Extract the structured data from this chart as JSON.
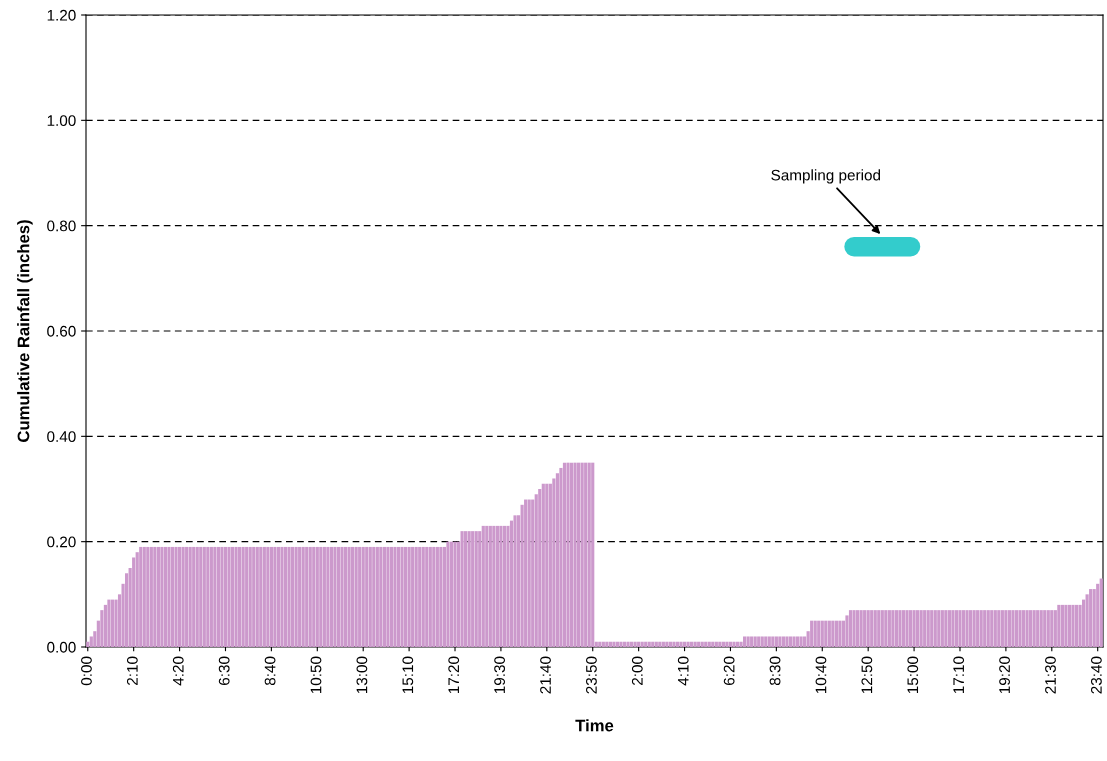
{
  "chart_data": {
    "type": "bar",
    "xlabel": "Time",
    "ylabel": "Cumulative Rainfall (inches)",
    "categories": [
      "0:00",
      null,
      null,
      null,
      null,
      null,
      null,
      null,
      null,
      null,
      null,
      null,
      null,
      "2:10",
      null,
      null,
      null,
      null,
      null,
      null,
      null,
      null,
      null,
      null,
      null,
      null,
      "4:20",
      null,
      null,
      null,
      null,
      null,
      null,
      null,
      null,
      null,
      null,
      null,
      null,
      "6:30",
      null,
      null,
      null,
      null,
      null,
      null,
      null,
      null,
      null,
      null,
      null,
      null,
      "8:40",
      null,
      null,
      null,
      null,
      null,
      null,
      null,
      null,
      null,
      null,
      null,
      null,
      "10:50",
      null,
      null,
      null,
      null,
      null,
      null,
      null,
      null,
      null,
      null,
      null,
      null,
      "13:00",
      null,
      null,
      null,
      null,
      null,
      null,
      null,
      null,
      null,
      null,
      null,
      null,
      "15:10",
      null,
      null,
      null,
      null,
      null,
      null,
      null,
      null,
      null,
      null,
      null,
      null,
      "17:20",
      null,
      null,
      null,
      null,
      null,
      null,
      null,
      null,
      null,
      null,
      null,
      null,
      "19:30",
      null,
      null,
      null,
      null,
      null,
      null,
      null,
      null,
      null,
      null,
      null,
      null,
      "21:40",
      null,
      null,
      null,
      null,
      null,
      null,
      null,
      null,
      null,
      null,
      null,
      null,
      "23:50",
      null,
      null,
      null,
      null,
      null,
      null,
      null,
      null,
      null,
      null,
      null,
      null,
      "2:00",
      null,
      null,
      null,
      null,
      null,
      null,
      null,
      null,
      null,
      null,
      null,
      null,
      "4:10",
      null,
      null,
      null,
      null,
      null,
      null,
      null,
      null,
      null,
      null,
      null,
      null,
      "6:20",
      null,
      null,
      null,
      null,
      null,
      null,
      null,
      null,
      null,
      null,
      null,
      null,
      "8:30",
      null,
      null,
      null,
      null,
      null,
      null,
      null,
      null,
      null,
      null,
      null,
      null,
      "10:40",
      null,
      null,
      null,
      null,
      null,
      null,
      null,
      null,
      null,
      null,
      null,
      null,
      "12:50",
      null,
      null,
      null,
      null,
      null,
      null,
      null,
      null,
      null,
      null,
      null,
      null,
      "15:00",
      null,
      null,
      null,
      null,
      null,
      null,
      null,
      null,
      null,
      null,
      null,
      null,
      "17:10",
      null,
      null,
      null,
      null,
      null,
      null,
      null,
      null,
      null,
      null,
      null,
      null,
      "19:20",
      null,
      null,
      null,
      null,
      null,
      null,
      null,
      null,
      null,
      null,
      null,
      null,
      "21:30",
      null,
      null,
      null,
      null,
      null,
      null,
      null,
      null,
      null,
      null,
      null,
      null,
      "23:40",
      null
    ],
    "series": [
      {
        "color": "#cc99cc",
        "values": [
          0.01,
          0.02,
          0.03,
          0.05,
          0.07,
          0.08,
          0.09,
          0.09,
          0.09,
          0.1,
          0.12,
          0.14,
          0.15,
          0.17,
          0.18,
          0.19,
          0.19,
          0.19,
          0.19,
          0.19,
          0.19,
          0.19,
          0.19,
          0.19,
          0.19,
          0.19,
          0.19,
          0.19,
          0.19,
          0.19,
          0.19,
          0.19,
          0.19,
          0.19,
          0.19,
          0.19,
          0.19,
          0.19,
          0.19,
          0.19,
          0.19,
          0.19,
          0.19,
          0.19,
          0.19,
          0.19,
          0.19,
          0.19,
          0.19,
          0.19,
          0.19,
          0.19,
          0.19,
          0.19,
          0.19,
          0.19,
          0.19,
          0.19,
          0.19,
          0.19,
          0.19,
          0.19,
          0.19,
          0.19,
          0.19,
          0.19,
          0.19,
          0.19,
          0.19,
          0.19,
          0.19,
          0.19,
          0.19,
          0.19,
          0.19,
          0.19,
          0.19,
          0.19,
          0.19,
          0.19,
          0.19,
          0.19,
          0.19,
          0.19,
          0.19,
          0.19,
          0.19,
          0.19,
          0.19,
          0.19,
          0.19,
          0.19,
          0.19,
          0.19,
          0.19,
          0.19,
          0.19,
          0.19,
          0.19,
          0.19,
          0.19,
          0.19,
          0.2,
          0.2,
          0.2,
          0.2,
          0.22,
          0.22,
          0.22,
          0.22,
          0.22,
          0.22,
          0.23,
          0.23,
          0.23,
          0.23,
          0.23,
          0.23,
          0.23,
          0.23,
          0.24,
          0.25,
          0.25,
          0.27,
          0.28,
          0.28,
          0.28,
          0.29,
          0.3,
          0.31,
          0.31,
          0.31,
          0.32,
          0.33,
          0.34,
          0.35,
          0.35,
          0.35,
          0.35,
          0.35,
          0.35,
          0.35,
          0.35,
          0.35,
          0.01,
          0.01,
          0.01,
          0.01,
          0.01,
          0.01,
          0.01,
          0.01,
          0.01,
          0.01,
          0.01,
          0.01,
          0.01,
          0.01,
          0.01,
          0.01,
          0.01,
          0.01,
          0.01,
          0.01,
          0.01,
          0.01,
          0.01,
          0.01,
          0.01,
          0.01,
          0.01,
          0.01,
          0.01,
          0.01,
          0.01,
          0.01,
          0.01,
          0.01,
          0.01,
          0.01,
          0.01,
          0.01,
          0.01,
          0.01,
          0.01,
          0.01,
          0.02,
          0.02,
          0.02,
          0.02,
          0.02,
          0.02,
          0.02,
          0.02,
          0.02,
          0.02,
          0.02,
          0.02,
          0.02,
          0.02,
          0.02,
          0.02,
          0.02,
          0.02,
          0.03,
          0.05,
          0.05,
          0.05,
          0.05,
          0.05,
          0.05,
          0.05,
          0.05,
          0.05,
          0.05,
          0.06,
          0.07,
          0.07,
          0.07,
          0.07,
          0.07,
          0.07,
          0.07,
          0.07,
          0.07,
          0.07,
          0.07,
          0.07,
          0.07,
          0.07,
          0.07,
          0.07,
          0.07,
          0.07,
          0.07,
          0.07,
          0.07,
          0.07,
          0.07,
          0.07,
          0.07,
          0.07,
          0.07,
          0.07,
          0.07,
          0.07,
          0.07,
          0.07,
          0.07,
          0.07,
          0.07,
          0.07,
          0.07,
          0.07,
          0.07,
          0.07,
          0.07,
          0.07,
          0.07,
          0.07,
          0.07,
          0.07,
          0.07,
          0.07,
          0.07,
          0.07,
          0.07,
          0.07,
          0.07,
          0.07,
          0.07,
          0.07,
          0.07,
          0.07,
          0.07,
          0.08,
          0.08,
          0.08,
          0.08,
          0.08,
          0.08,
          0.08,
          0.09,
          0.1,
          0.11,
          0.11,
          0.12,
          0.13
        ]
      },
      {
        "type": "line",
        "color": "#33cccc",
        "values": [
          null,
          null,
          null,
          null,
          null,
          null,
          null,
          null,
          null,
          null,
          null,
          null,
          null,
          null,
          null,
          null,
          null,
          null,
          null,
          null,
          null,
          null,
          null,
          null,
          null,
          null,
          null,
          null,
          null,
          null,
          null,
          null,
          null,
          null,
          null,
          null,
          null,
          null,
          null,
          null,
          null,
          null,
          null,
          null,
          null,
          null,
          null,
          null,
          null,
          null,
          null,
          null,
          null,
          null,
          null,
          null,
          null,
          null,
          null,
          null,
          null,
          null,
          null,
          null,
          null,
          null,
          null,
          null,
          null,
          null,
          null,
          null,
          null,
          null,
          null,
          null,
          null,
          null,
          null,
          null,
          null,
          null,
          null,
          null,
          null,
          null,
          null,
          null,
          null,
          null,
          null,
          null,
          null,
          null,
          null,
          null,
          null,
          null,
          null,
          null,
          null,
          null,
          null,
          null,
          null,
          null,
          null,
          null,
          null,
          null,
          null,
          null,
          null,
          null,
          null,
          null,
          null,
          null,
          null,
          null,
          null,
          null,
          null,
          null,
          null,
          null,
          null,
          null,
          null,
          null,
          null,
          null,
          null,
          null,
          null,
          null,
          null,
          null,
          null,
          null,
          null,
          null,
          null,
          null,
          null,
          null,
          null,
          null,
          null,
          null,
          null,
          null,
          null,
          null,
          null,
          null,
          null,
          null,
          null,
          null,
          null,
          null,
          null,
          null,
          null,
          null,
          null,
          null,
          null,
          null,
          null,
          null,
          null,
          null,
          null,
          null,
          null,
          null,
          null,
          null,
          null,
          null,
          null,
          null,
          null,
          null,
          null,
          null,
          null,
          null,
          null,
          null,
          null,
          null,
          null,
          null,
          null,
          null,
          null,
          null,
          null,
          null,
          null,
          null,
          null,
          null,
          null,
          null,
          null,
          null,
          null,
          null,
          null,
          null,
          null,
          null,
          null,
          0.76,
          0.76,
          0.76,
          0.76,
          0.76,
          0.76,
          0.76,
          0.76,
          0.76,
          0.76,
          0.76,
          0.76,
          0.76,
          0.76,
          0.76,
          0.76,
          0.76,
          null,
          null,
          null,
          null,
          null,
          null,
          null,
          null,
          null,
          null,
          null,
          null,
          null,
          null,
          null,
          null,
          null,
          null,
          null,
          null,
          null,
          null,
          null,
          null,
          null,
          null,
          null,
          null,
          null,
          null,
          null,
          null,
          null,
          null,
          null,
          null,
          null,
          null,
          null,
          null,
          null,
          null,
          null,
          null,
          null,
          null,
          null,
          null,
          null,
          null,
          null,
          null,
          null,
          null
        ]
      }
    ],
    "annotations": [
      "Sampling period"
    ],
    "ylim": [
      0,
      1.2
    ],
    "yticks": [
      {
        "value": 0,
        "label": "0.00"
      },
      {
        "value": 0.2,
        "label": "0.20"
      },
      {
        "value": 0.4,
        "label": "0.40"
      },
      {
        "value": 0.6,
        "label": "0.60"
      },
      {
        "value": 0.8,
        "label": "0.80"
      },
      {
        "value": 1.0,
        "label": "1.00"
      },
      {
        "value": 1.2,
        "label": "1.20"
      }
    ],
    "grid": "y"
  }
}
